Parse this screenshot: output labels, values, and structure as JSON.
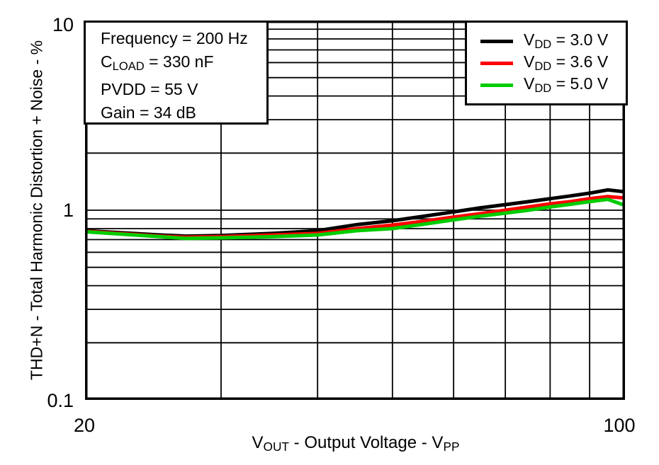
{
  "axes": {
    "y_title": "THD+N - Total Harmonic Distortion + Noise - %",
    "x_title_sym": "V",
    "x_title_sym_sub": "OUT",
    "x_title_mid": " - Output Voltage - V",
    "x_title_end_sub": "PP",
    "y_tick_top": "10",
    "y_tick_mid": "1",
    "y_tick_bottom": "0.1",
    "x_tick_left": "20",
    "x_tick_right": "100"
  },
  "conditions_box": {
    "line1": "Frequency = 200 Hz",
    "line2_sym": "C",
    "line2_sub": "LOAD",
    "line2_rest": " = 330 nF",
    "line3": "PVDD = 55 V",
    "line4": "Gain = 34 dB"
  },
  "legend": {
    "items": [
      {
        "sym": "V",
        "sub": "DD",
        "rest": " = 3.0 V",
        "color": "#000000"
      },
      {
        "sym": "V",
        "sub": "DD",
        "rest": " = 3.6 V",
        "color": "#ff0000"
      },
      {
        "sym": "V",
        "sub": "DD",
        "rest": " = 5.0 V",
        "color": "#00cc00"
      }
    ]
  },
  "chart_data": {
    "type": "line",
    "title": "",
    "xlabel": "VOUT - Output Voltage - VPP",
    "ylabel": "THD+N - Total Harmonic Distortion + Noise - %",
    "x_scale": "log",
    "y_scale": "log",
    "xlim": [
      20,
      100
    ],
    "ylim": [
      0.1,
      10
    ],
    "grid": true,
    "x_gridlines": [
      30,
      40,
      50,
      60,
      70,
      80,
      90
    ],
    "y_gridlines": [
      0.2,
      0.3,
      0.4,
      0.5,
      0.6,
      0.7,
      0.8,
      0.9,
      1,
      2,
      3,
      4,
      5,
      6,
      7,
      8,
      9
    ],
    "x_tick_labels": [
      20,
      100
    ],
    "y_tick_labels": [
      10,
      1,
      0.1
    ],
    "legend_position": "top-right",
    "annotations": [
      "Frequency = 200 Hz",
      "CLOAD = 330 nF",
      "PVDD = 55 V",
      "Gain = 34 dB"
    ],
    "x": [
      20,
      25,
      27,
      30,
      35,
      40,
      45,
      50,
      55,
      60,
      65,
      70,
      75,
      80,
      85,
      90,
      95,
      100
    ],
    "series": [
      {
        "name": "VDD = 3.0 V",
        "color": "#000000",
        "values": [
          0.78,
          0.74,
          0.73,
          0.735,
          0.755,
          0.78,
          0.84,
          0.88,
          0.93,
          0.98,
          1.03,
          1.07,
          1.11,
          1.15,
          1.19,
          1.23,
          1.28,
          1.25
        ]
      },
      {
        "name": "VDD = 3.6 V",
        "color": "#ff0000",
        "values": [
          0.775,
          0.73,
          0.72,
          0.725,
          0.74,
          0.755,
          0.8,
          0.835,
          0.875,
          0.92,
          0.96,
          1.0,
          1.04,
          1.08,
          1.11,
          1.15,
          1.18,
          1.16
        ]
      },
      {
        "name": "VDD = 5.0 V",
        "color": "#00cc00",
        "values": [
          0.77,
          0.725,
          0.71,
          0.715,
          0.725,
          0.74,
          0.78,
          0.8,
          0.845,
          0.89,
          0.93,
          0.965,
          1.0,
          1.04,
          1.075,
          1.11,
          1.14,
          1.06
        ]
      }
    ]
  }
}
